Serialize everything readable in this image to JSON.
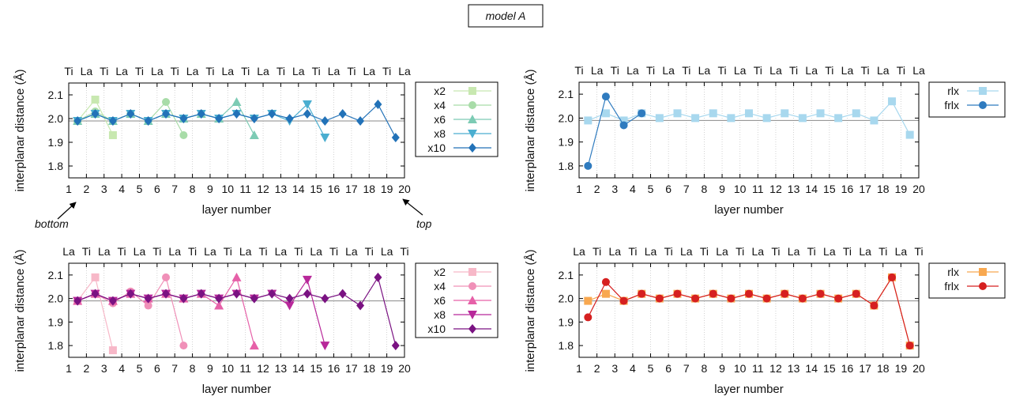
{
  "figure": {
    "title": "model A",
    "bottom_label": "bottom",
    "top_label": "top"
  },
  "chart_data": [
    {
      "type": "line",
      "panel": "top-left",
      "xlabel": "layer number",
      "ylabel": "interplanar distance (Å)",
      "xlim": [
        1,
        20
      ],
      "ylim": [
        1.75,
        2.15
      ],
      "yticks": [
        "1.8",
        "1.9",
        "2.0",
        "2.1"
      ],
      "xticks": [
        "1",
        "2",
        "3",
        "4",
        "5",
        "6",
        "7",
        "8",
        "9",
        "10",
        "11",
        "12",
        "13",
        "14",
        "15",
        "16",
        "17",
        "18",
        "19",
        "20"
      ],
      "top_labels": [
        "Ti",
        "La",
        "Ti",
        "La",
        "Ti",
        "La",
        "Ti",
        "La",
        "Ti",
        "La",
        "Ti",
        "La",
        "Ti",
        "La",
        "Ti",
        "La",
        "Ti",
        "La",
        "Ti",
        "La"
      ],
      "reference_line": 1.99,
      "grid": "vertical-dotted",
      "legend": "right",
      "series": [
        {
          "name": "x2",
          "color": "#c8e8b0",
          "marker": "square",
          "x": [
            1.5,
            2.5,
            3.5
          ],
          "y": [
            1.99,
            2.08,
            1.93
          ]
        },
        {
          "name": "x4",
          "color": "#a8dca8",
          "marker": "circle",
          "x": [
            1.5,
            2.5,
            3.5,
            4.5,
            5.5,
            6.5,
            7.5
          ],
          "y": [
            1.99,
            2.03,
            1.99,
            2.02,
            1.99,
            2.07,
            1.93
          ]
        },
        {
          "name": "x6",
          "color": "#7ccbb4",
          "marker": "triangle-up",
          "x": [
            1.5,
            2.5,
            3.5,
            4.5,
            5.5,
            6.5,
            7.5,
            8.5,
            9.5,
            10.5,
            11.5
          ],
          "y": [
            1.99,
            2.02,
            1.99,
            2.02,
            1.99,
            2.02,
            2.0,
            2.02,
            2.0,
            2.07,
            1.93
          ]
        },
        {
          "name": "x8",
          "color": "#4aaed0",
          "marker": "triangle-down",
          "x": [
            1.5,
            2.5,
            3.5,
            4.5,
            5.5,
            6.5,
            7.5,
            8.5,
            9.5,
            10.5,
            11.5,
            12.5,
            13.5,
            14.5,
            15.5
          ],
          "y": [
            1.99,
            2.02,
            1.99,
            2.02,
            1.99,
            2.02,
            2.0,
            2.02,
            2.0,
            2.02,
            2.0,
            2.02,
            1.99,
            2.06,
            1.92
          ]
        },
        {
          "name": "x10",
          "color": "#2272b8",
          "marker": "diamond",
          "x": [
            1.5,
            2.5,
            3.5,
            4.5,
            5.5,
            6.5,
            7.5,
            8.5,
            9.5,
            10.5,
            11.5,
            12.5,
            13.5,
            14.5,
            15.5,
            16.5,
            17.5,
            18.5,
            19.5
          ],
          "y": [
            1.99,
            2.02,
            1.99,
            2.02,
            1.99,
            2.02,
            2.0,
            2.02,
            2.0,
            2.02,
            2.0,
            2.02,
            2.0,
            2.02,
            1.99,
            2.02,
            1.99,
            2.06,
            1.92
          ]
        }
      ]
    },
    {
      "type": "line",
      "panel": "top-right",
      "xlabel": "layer number",
      "ylabel": "interplanar distance (Å)",
      "xlim": [
        1,
        20
      ],
      "ylim": [
        1.75,
        2.15
      ],
      "yticks": [
        "1.8",
        "1.9",
        "2.0",
        "2.1"
      ],
      "xticks": [
        "1",
        "2",
        "3",
        "4",
        "5",
        "6",
        "7",
        "8",
        "9",
        "10",
        "11",
        "12",
        "13",
        "14",
        "15",
        "16",
        "17",
        "18",
        "19",
        "20"
      ],
      "top_labels": [
        "Ti",
        "La",
        "Ti",
        "La",
        "Ti",
        "La",
        "Ti",
        "La",
        "Ti",
        "La",
        "Ti",
        "La",
        "Ti",
        "La",
        "Ti",
        "La",
        "Ti",
        "La",
        "Ti",
        "La"
      ],
      "reference_line": 1.99,
      "grid": "vertical-dotted",
      "legend": "top-right",
      "series": [
        {
          "name": "rlx",
          "color": "#a8d8ee",
          "marker": "square",
          "x": [
            1.5,
            2.5,
            3.5,
            4.5,
            5.5,
            6.5,
            7.5,
            8.5,
            9.5,
            10.5,
            11.5,
            12.5,
            13.5,
            14.5,
            15.5,
            16.5,
            17.5,
            18.5,
            19.5
          ],
          "y": [
            1.99,
            2.02,
            1.99,
            2.02,
            2.0,
            2.02,
            2.0,
            2.02,
            2.0,
            2.02,
            2.0,
            2.02,
            2.0,
            2.02,
            2.0,
            2.02,
            1.99,
            2.07,
            1.93
          ]
        },
        {
          "name": "frlx",
          "color": "#2f7bbf",
          "marker": "circle",
          "x": [
            1.5,
            2.5,
            3.5,
            4.5
          ],
          "y": [
            1.8,
            2.09,
            1.97,
            2.02
          ]
        }
      ]
    },
    {
      "type": "line",
      "panel": "bottom-left",
      "xlabel": "layer number",
      "ylabel": "interplanar distance (Å)",
      "xlim": [
        1,
        20
      ],
      "ylim": [
        1.75,
        2.15
      ],
      "yticks": [
        "1.8",
        "1.9",
        "2.0",
        "2.1"
      ],
      "xticks": [
        "1",
        "2",
        "3",
        "4",
        "5",
        "6",
        "7",
        "8",
        "9",
        "10",
        "11",
        "12",
        "13",
        "14",
        "15",
        "16",
        "17",
        "18",
        "19",
        "20"
      ],
      "top_labels": [
        "La",
        "Ti",
        "La",
        "Ti",
        "La",
        "Ti",
        "La",
        "Ti",
        "La",
        "Ti",
        "La",
        "Ti",
        "La",
        "Ti",
        "La",
        "Ti",
        "La",
        "Ti",
        "La",
        "Ti"
      ],
      "reference_line": 1.99,
      "grid": "vertical-dotted",
      "legend": "right",
      "series": [
        {
          "name": "x2",
          "color": "#f7b8c8",
          "marker": "square",
          "x": [
            1.5,
            2.5,
            3.5
          ],
          "y": [
            1.99,
            2.09,
            1.78
          ]
        },
        {
          "name": "x4",
          "color": "#f090b8",
          "marker": "circle",
          "x": [
            1.5,
            2.5,
            3.5,
            4.5,
            5.5,
            6.5,
            7.5
          ],
          "y": [
            1.99,
            2.02,
            1.98,
            2.03,
            1.97,
            2.09,
            1.8
          ]
        },
        {
          "name": "x6",
          "color": "#e660a8",
          "marker": "triangle-up",
          "x": [
            1.5,
            2.5,
            3.5,
            4.5,
            5.5,
            6.5,
            7.5,
            8.5,
            9.5,
            10.5,
            11.5
          ],
          "y": [
            1.99,
            2.02,
            1.99,
            2.02,
            2.0,
            2.02,
            2.0,
            2.02,
            1.97,
            2.09,
            1.8
          ]
        },
        {
          "name": "x8",
          "color": "#b8289a",
          "marker": "triangle-down",
          "x": [
            1.5,
            2.5,
            3.5,
            4.5,
            5.5,
            6.5,
            7.5,
            8.5,
            9.5,
            10.5,
            11.5,
            12.5,
            13.5,
            14.5,
            15.5
          ],
          "y": [
            1.99,
            2.02,
            1.99,
            2.02,
            2.0,
            2.02,
            2.0,
            2.02,
            2.0,
            2.02,
            2.0,
            2.02,
            1.97,
            2.08,
            1.8
          ]
        },
        {
          "name": "x10",
          "color": "#7a1282",
          "marker": "diamond",
          "x": [
            1.5,
            2.5,
            3.5,
            4.5,
            5.5,
            6.5,
            7.5,
            8.5,
            9.5,
            10.5,
            11.5,
            12.5,
            13.5,
            14.5,
            15.5,
            16.5,
            17.5,
            18.5,
            19.5
          ],
          "y": [
            1.99,
            2.02,
            1.99,
            2.02,
            2.0,
            2.02,
            2.0,
            2.02,
            2.0,
            2.02,
            2.0,
            2.02,
            2.0,
            2.02,
            2.0,
            2.02,
            1.97,
            2.09,
            1.8
          ]
        }
      ]
    },
    {
      "type": "line",
      "panel": "bottom-right",
      "xlabel": "layer number",
      "ylabel": "interplanar distance (Å)",
      "xlim": [
        1,
        20
      ],
      "ylim": [
        1.75,
        2.15
      ],
      "yticks": [
        "1.8",
        "1.9",
        "2.0",
        "2.1"
      ],
      "xticks": [
        "1",
        "2",
        "3",
        "4",
        "5",
        "6",
        "7",
        "8",
        "9",
        "10",
        "11",
        "12",
        "13",
        "14",
        "15",
        "16",
        "17",
        "18",
        "19",
        "20"
      ],
      "top_labels": [
        "La",
        "Ti",
        "La",
        "Ti",
        "La",
        "Ti",
        "La",
        "Ti",
        "La",
        "Ti",
        "La",
        "Ti",
        "La",
        "Ti",
        "La",
        "Ti",
        "La",
        "Ti",
        "La",
        "Ti"
      ],
      "reference_line": 1.99,
      "grid": "vertical-dotted",
      "legend": "top-right",
      "series": [
        {
          "name": "rlx",
          "color": "#f8a850",
          "marker": "square",
          "x": [
            1.5,
            2.5,
            3.5,
            4.5,
            5.5,
            6.5,
            7.5,
            8.5,
            9.5,
            10.5,
            11.5,
            12.5,
            13.5,
            14.5,
            15.5,
            16.5,
            17.5,
            18.5,
            19.5
          ],
          "y": [
            1.99,
            2.02,
            1.99,
            2.02,
            2.0,
            2.02,
            2.0,
            2.02,
            2.0,
            2.02,
            2.0,
            2.02,
            2.0,
            2.02,
            2.0,
            2.02,
            1.97,
            2.09,
            1.8
          ]
        },
        {
          "name": "frlx",
          "color": "#d62020",
          "marker": "circle",
          "x": [
            1.5,
            2.5,
            3.5,
            4.5,
            5.5,
            6.5,
            7.5,
            8.5,
            9.5,
            10.5,
            11.5,
            12.5,
            13.5,
            14.5,
            15.5,
            16.5,
            17.5,
            18.5,
            19.5
          ],
          "y": [
            1.92,
            2.07,
            1.99,
            2.02,
            2.0,
            2.02,
            2.0,
            2.02,
            2.0,
            2.02,
            2.0,
            2.02,
            2.0,
            2.02,
            2.0,
            2.02,
            1.97,
            2.09,
            1.8
          ]
        }
      ]
    }
  ]
}
